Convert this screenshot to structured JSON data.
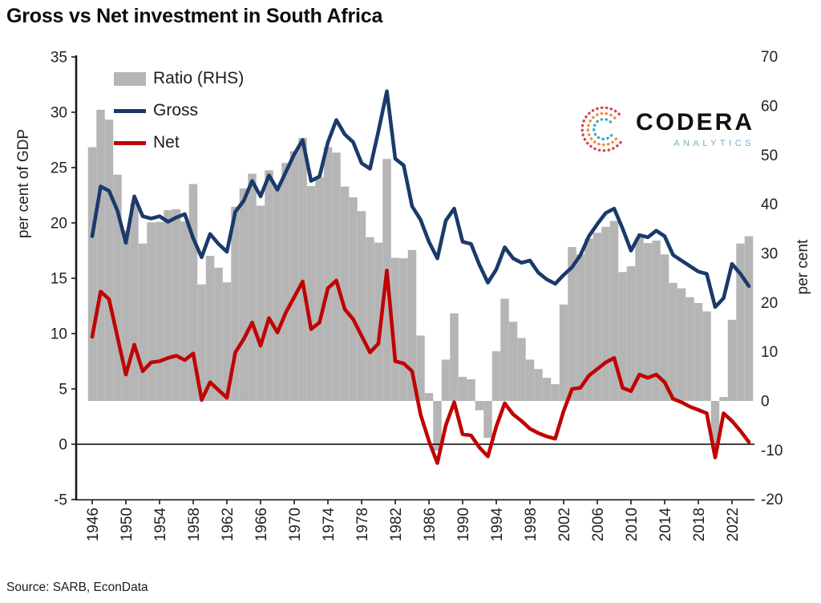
{
  "title": "Gross vs Net investment in South Africa",
  "source": "Source: SARB, EconData",
  "logo": {
    "name": "CODERA",
    "subtitle": "ANALYTICS"
  },
  "legend": {
    "ratio": "Ratio (RHS)",
    "gross": "Gross",
    "net": "Net"
  },
  "colors": {
    "gross": "#1b3a6b",
    "net": "#c00404",
    "ratio_bar": "#b5b5b5",
    "axis": "#1a1a1a",
    "logo_arc_outer": "#d6455b",
    "logo_arc_mid": "#ef8b45",
    "logo_arc_inner": "#3fa8c9",
    "logo_subtitle": "#74aec6"
  },
  "chart_data": {
    "type": "combo-bar-line",
    "title": "Gross vs Net investment in South Africa",
    "grid": false,
    "legend_position": "top-left-inside",
    "left_axis": {
      "title": "per cent of GDP",
      "ticks": [
        35,
        30,
        25,
        20,
        15,
        10,
        5,
        0,
        -5
      ],
      "range": [
        -5,
        35
      ]
    },
    "right_axis": {
      "title": "per cent",
      "ticks": [
        70,
        60,
        50,
        40,
        30,
        20,
        10,
        0,
        -10,
        -20
      ],
      "range": [
        -20,
        70
      ]
    },
    "x_axis": {
      "ticks": [
        1946,
        1950,
        1954,
        1958,
        1962,
        1966,
        1970,
        1974,
        1978,
        1982,
        1986,
        1990,
        1994,
        1998,
        2002,
        2006,
        2010,
        2014,
        2018,
        2022
      ],
      "range": [
        1946,
        2024
      ]
    },
    "years": [
      1946,
      1947,
      1948,
      1949,
      1950,
      1951,
      1952,
      1953,
      1954,
      1955,
      1956,
      1957,
      1958,
      1959,
      1960,
      1961,
      1962,
      1963,
      1964,
      1965,
      1966,
      1967,
      1968,
      1969,
      1970,
      1971,
      1972,
      1973,
      1974,
      1975,
      1976,
      1977,
      1978,
      1979,
      1980,
      1981,
      1982,
      1983,
      1984,
      1985,
      1986,
      1987,
      1988,
      1989,
      1990,
      1991,
      1992,
      1993,
      1994,
      1995,
      1996,
      1997,
      1998,
      1999,
      2000,
      2001,
      2002,
      2003,
      2004,
      2005,
      2006,
      2007,
      2008,
      2009,
      2010,
      2011,
      2012,
      2013,
      2014,
      2015,
      2016,
      2017,
      2018,
      2019,
      2020,
      2021,
      2022,
      2023,
      2024
    ],
    "series": {
      "gross": [
        18.8,
        23.3,
        22.9,
        21.1,
        18.2,
        22.4,
        20.6,
        20.4,
        20.6,
        20.1,
        20.5,
        20.8,
        18.6,
        16.9,
        19.0,
        18.1,
        17.4,
        21.0,
        22.0,
        23.8,
        22.4,
        24.3,
        23.0,
        24.6,
        26.2,
        27.5,
        23.8,
        24.2,
        27.3,
        29.3,
        28.0,
        27.3,
        25.4,
        24.9,
        28.3,
        31.9,
        25.8,
        25.2,
        21.5,
        20.3,
        18.3,
        16.8,
        20.2,
        21.3,
        18.3,
        18.1,
        16.2,
        14.6,
        15.8,
        17.8,
        16.8,
        16.4,
        16.6,
        15.5,
        14.9,
        14.5,
        15.3,
        16.0,
        17.1,
        18.8,
        19.9,
        20.9,
        21.3,
        19.5,
        17.5,
        18.9,
        18.7,
        19.3,
        18.8,
        17.1,
        16.6,
        16.1,
        15.6,
        15.4,
        12.4,
        13.2,
        16.3,
        15.4,
        14.3
      ],
      "net": [
        9.7,
        13.8,
        13.1,
        9.7,
        6.3,
        9.0,
        6.6,
        7.4,
        7.5,
        7.8,
        8.0,
        7.6,
        8.2,
        4.0,
        5.6,
        4.9,
        4.2,
        8.3,
        9.5,
        11.0,
        8.9,
        11.4,
        10.1,
        11.9,
        13.3,
        14.7,
        10.4,
        11.0,
        14.1,
        14.8,
        12.2,
        11.3,
        9.8,
        8.3,
        9.1,
        15.7,
        7.5,
        7.3,
        6.6,
        2.7,
        0.3,
        -1.7,
        1.7,
        3.8,
        0.9,
        0.8,
        -0.3,
        -1.1,
        1.6,
        3.7,
        2.7,
        2.1,
        1.4,
        1.0,
        0.7,
        0.5,
        3.0,
        5.0,
        5.1,
        6.2,
        6.8,
        7.4,
        7.8,
        5.1,
        4.8,
        6.3,
        6.0,
        6.3,
        5.6,
        4.1,
        3.8,
        3.4,
        3.1,
        2.8,
        -1.2,
        2.8,
        2.1,
        1.2,
        0.2
      ],
      "ratio": [
        51.6,
        59.2,
        57.2,
        46.0,
        34.6,
        40.2,
        32.0,
        36.3,
        36.4,
        38.8,
        39.0,
        36.5,
        44.1,
        23.7,
        29.5,
        27.1,
        24.1,
        39.5,
        43.2,
        46.2,
        39.7,
        46.9,
        43.9,
        48.4,
        50.8,
        53.5,
        43.7,
        45.5,
        51.6,
        50.5,
        43.6,
        41.4,
        38.6,
        33.3,
        32.2,
        49.2,
        29.1,
        29.0,
        30.7,
        13.3,
        1.6,
        -10.1,
        8.4,
        17.8,
        4.9,
        4.4,
        -1.9,
        -7.5,
        10.1,
        20.8,
        16.1,
        12.8,
        8.4,
        6.5,
        4.7,
        3.4,
        19.6,
        31.3,
        29.8,
        33.0,
        34.2,
        35.4,
        36.6,
        26.2,
        27.4,
        33.3,
        32.1,
        32.6,
        29.8,
        24.0,
        22.9,
        21.1,
        19.9,
        18.2,
        -9.7,
        0.8,
        16.5,
        32.0,
        33.5
      ]
    },
    "series_names": {
      "gross": "Gross",
      "net": "Net",
      "ratio": "Ratio (RHS)"
    }
  }
}
